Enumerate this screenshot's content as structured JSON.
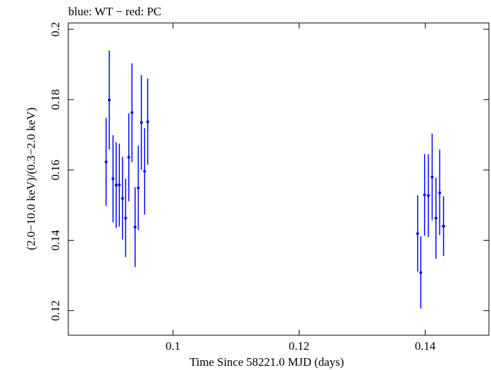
{
  "chart_data": {
    "type": "scatter",
    "title": "blue: WT − red: PC",
    "xlabel": "Time Since 58221.0 MJD (days)",
    "ylabel": "(2.0−10.0 keV)/(0.3−2.0 keV)",
    "xlim": [
      0.0834,
      0.1501
    ],
    "ylim": [
      0.113,
      0.2018
    ],
    "x_ticks": [
      {
        "value": 0.1,
        "label": "0.1"
      },
      {
        "value": 0.12,
        "label": "0.12"
      },
      {
        "value": 0.14,
        "label": "0.14"
      }
    ],
    "y_ticks": [
      {
        "value": 0.12,
        "label": "0.12"
      },
      {
        "value": 0.14,
        "label": "0.14"
      },
      {
        "value": 0.16,
        "label": "0.16"
      },
      {
        "value": 0.18,
        "label": "0.18"
      },
      {
        "value": 0.2,
        "label": "0.2"
      }
    ],
    "grid": false,
    "series": [
      {
        "color": "#0000ff",
        "points": [
          {
            "x": 0.0894,
            "y": 0.1623,
            "ylo": 0.1498,
            "yhi": 0.1748,
            "xerr": 0.0002
          },
          {
            "x": 0.0899,
            "y": 0.1799,
            "ylo": 0.1658,
            "yhi": 0.194,
            "xerr": 0.0002
          },
          {
            "x": 0.0905,
            "y": 0.1575,
            "ylo": 0.1451,
            "yhi": 0.1699,
            "xerr": 0.0002
          },
          {
            "x": 0.091,
            "y": 0.1557,
            "ylo": 0.1435,
            "yhi": 0.1679,
            "xerr": 0.0002
          },
          {
            "x": 0.0915,
            "y": 0.1557,
            "ylo": 0.1439,
            "yhi": 0.1675,
            "xerr": 0.0002
          },
          {
            "x": 0.092,
            "y": 0.1519,
            "ylo": 0.1402,
            "yhi": 0.1637,
            "xerr": 0.0002
          },
          {
            "x": 0.0925,
            "y": 0.1463,
            "ylo": 0.1352,
            "yhi": 0.1575,
            "xerr": 0.0002
          },
          {
            "x": 0.093,
            "y": 0.1636,
            "ylo": 0.1511,
            "yhi": 0.1761,
            "xerr": 0.0002
          },
          {
            "x": 0.0935,
            "y": 0.1763,
            "ylo": 0.1622,
            "yhi": 0.1903,
            "xerr": 0.0002
          },
          {
            "x": 0.094,
            "y": 0.1438,
            "ylo": 0.1324,
            "yhi": 0.1551,
            "xerr": 0.0002
          },
          {
            "x": 0.0945,
            "y": 0.1549,
            "ylo": 0.1429,
            "yhi": 0.1669,
            "xerr": 0.0002
          },
          {
            "x": 0.095,
            "y": 0.1735,
            "ylo": 0.16,
            "yhi": 0.187,
            "xerr": 0.0002
          },
          {
            "x": 0.0955,
            "y": 0.1596,
            "ylo": 0.1473,
            "yhi": 0.1719,
            "xerr": 0.0002
          },
          {
            "x": 0.096,
            "y": 0.1737,
            "ylo": 0.1615,
            "yhi": 0.186,
            "xerr": 0.0002
          },
          {
            "x": 0.1388,
            "y": 0.1419,
            "ylo": 0.1311,
            "yhi": 0.1528,
            "xerr": 0.0002
          },
          {
            "x": 0.1393,
            "y": 0.1308,
            "ylo": 0.1206,
            "yhi": 0.1411,
            "xerr": 0.0002
          },
          {
            "x": 0.1399,
            "y": 0.1529,
            "ylo": 0.1413,
            "yhi": 0.1645,
            "xerr": 0.0002
          },
          {
            "x": 0.1405,
            "y": 0.1527,
            "ylo": 0.1409,
            "yhi": 0.1645,
            "xerr": 0.0002
          },
          {
            "x": 0.1411,
            "y": 0.158,
            "ylo": 0.1457,
            "yhi": 0.1703,
            "xerr": 0.0002
          },
          {
            "x": 0.1417,
            "y": 0.1463,
            "ylo": 0.1348,
            "yhi": 0.1578,
            "xerr": 0.0002
          },
          {
            "x": 0.1423,
            "y": 0.1535,
            "ylo": 0.1415,
            "yhi": 0.1658,
            "xerr": 0.0002
          },
          {
            "x": 0.1429,
            "y": 0.144,
            "ylo": 0.1355,
            "yhi": 0.1525,
            "xerr": 0.0003
          }
        ]
      }
    ]
  }
}
